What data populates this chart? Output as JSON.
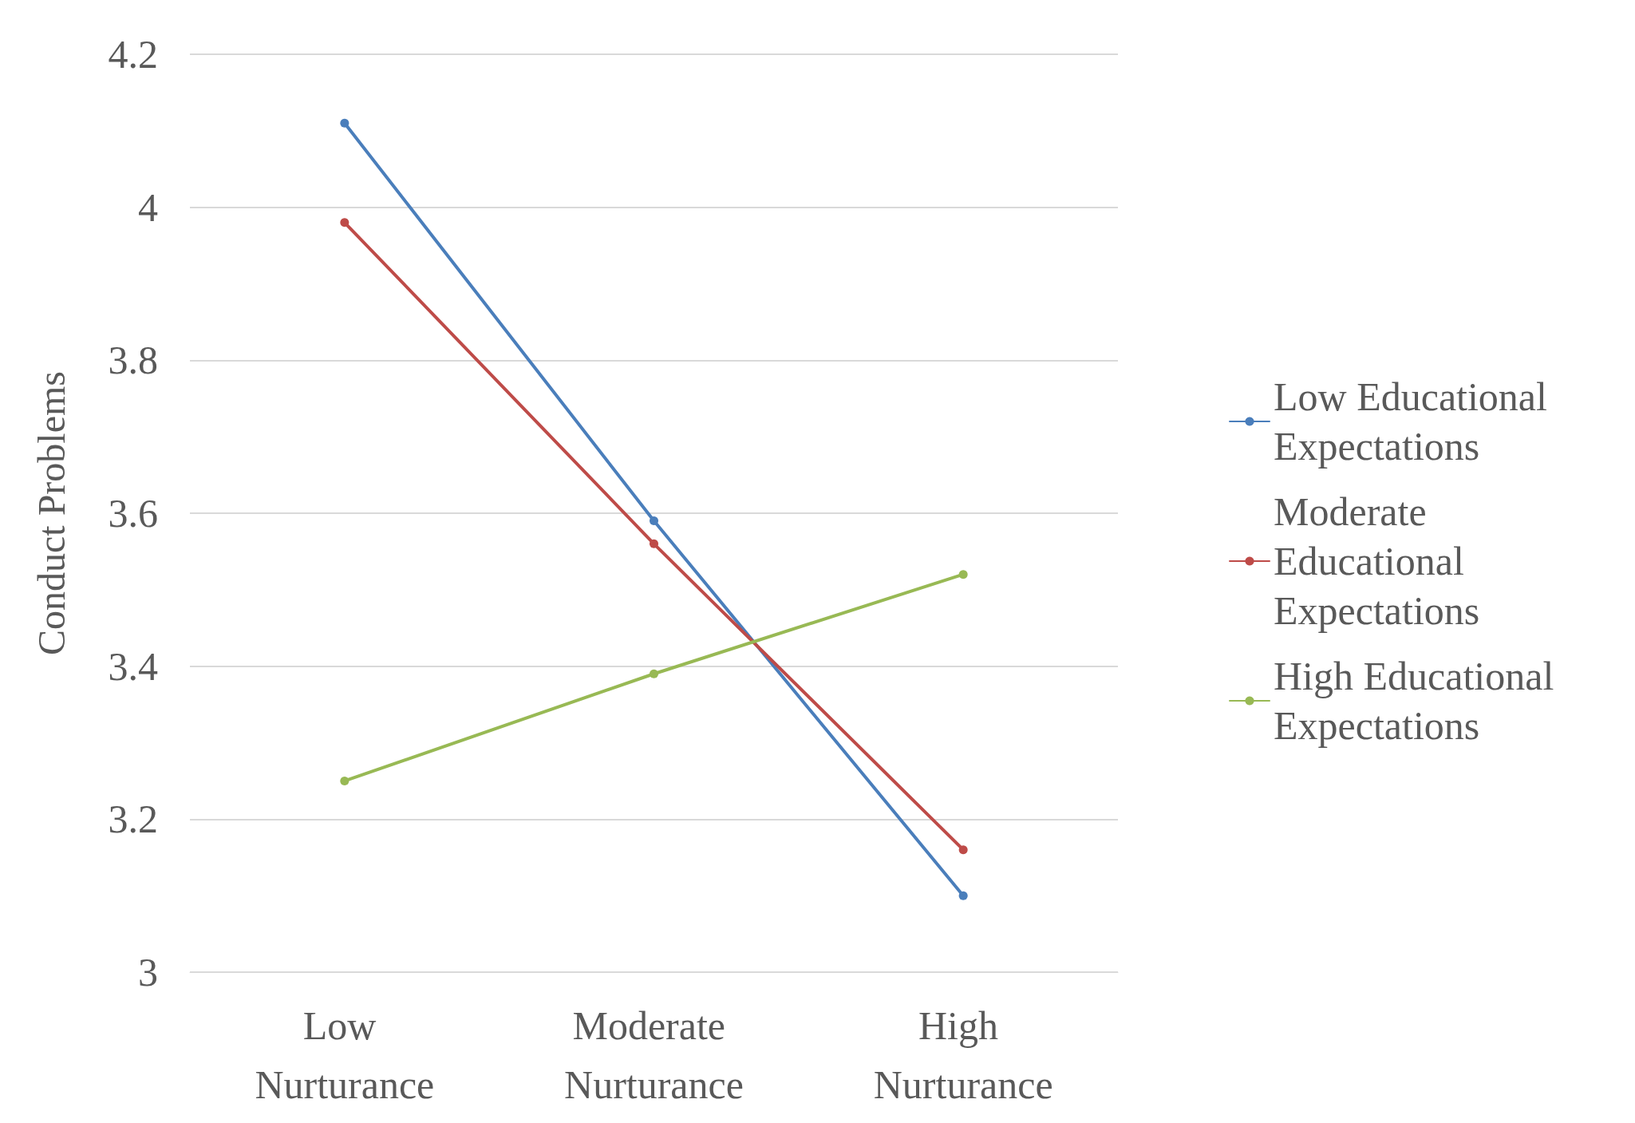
{
  "chart_data": {
    "type": "line",
    "ylabel": "Conduct Problems",
    "categories": [
      "Low Nurturance",
      "Moderate Nurturance",
      "High Nurturance"
    ],
    "series": [
      {
        "name": "Low Educational Expectations",
        "color": "#4a7ebb",
        "values": [
          4.11,
          3.59,
          3.1
        ]
      },
      {
        "name": "Moderate Educational Expectations",
        "color": "#be4b48",
        "values": [
          3.98,
          3.56,
          3.16
        ]
      },
      {
        "name": "High Educational Expectations",
        "color": "#98b954",
        "values": [
          3.25,
          3.39,
          3.52
        ]
      }
    ],
    "ylim": [
      3,
      4.2
    ],
    "yticks": [
      3,
      3.2,
      3.4,
      3.6,
      3.8,
      4,
      4.2
    ],
    "grid": "y",
    "legend": "right",
    "marker": "circle",
    "line_style": "solid"
  }
}
